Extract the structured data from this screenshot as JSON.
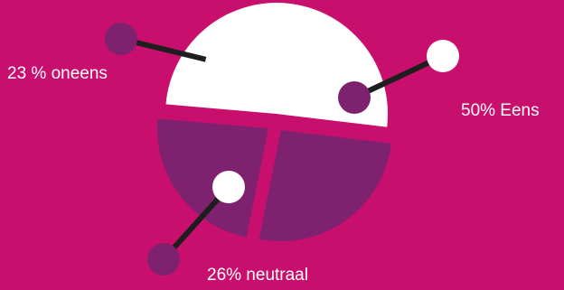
{
  "chart_data": {
    "type": "pie",
    "style": "exploded",
    "slices": [
      {
        "label": "50% Eens",
        "value": 50,
        "color": "#FFFFFF",
        "label_text_color": "#FFFFFF"
      },
      {
        "label": "26% neutraal",
        "value": 26,
        "color": "#7E2270",
        "label_text_color": "#FFFFFF"
      },
      {
        "label": "23 % oneens",
        "value": 23,
        "color": "#7E2270",
        "label_text_color": "#FFFFFF"
      }
    ],
    "connector_color": "#1E1E1E",
    "background": "#C90F6E",
    "legend": "none"
  }
}
